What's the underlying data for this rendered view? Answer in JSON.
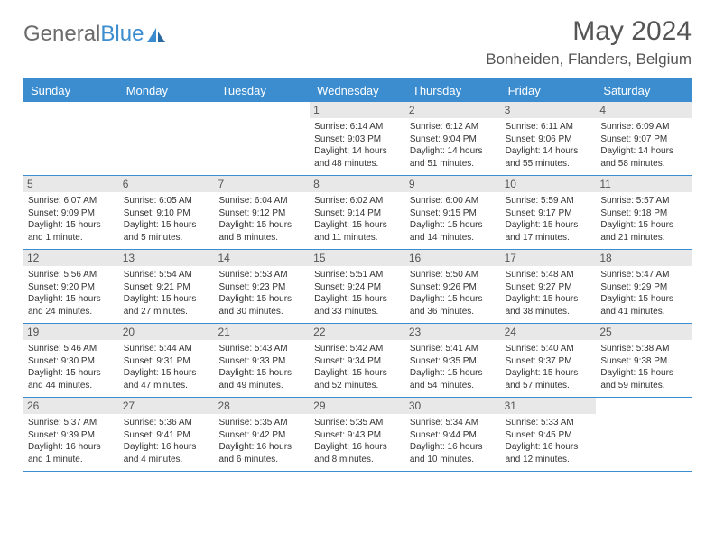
{
  "logo": {
    "text1": "General",
    "text2": "Blue"
  },
  "title": "May 2024",
  "location": "Bonheiden, Flanders, Belgium",
  "colors": {
    "header_bg": "#3b8dd0",
    "daynum_bg": "#e8e8e8",
    "text": "#333333",
    "title_text": "#555555",
    "logo_gray": "#6b6b6b",
    "logo_blue": "#3b8dd0",
    "page_bg": "#ffffff"
  },
  "columns": [
    "Sunday",
    "Monday",
    "Tuesday",
    "Wednesday",
    "Thursday",
    "Friday",
    "Saturday"
  ],
  "weeks": [
    [
      {
        "n": "",
        "sr": "",
        "ss": "",
        "dl": ""
      },
      {
        "n": "",
        "sr": "",
        "ss": "",
        "dl": ""
      },
      {
        "n": "",
        "sr": "",
        "ss": "",
        "dl": ""
      },
      {
        "n": "1",
        "sr": "Sunrise: 6:14 AM",
        "ss": "Sunset: 9:03 PM",
        "dl": "Daylight: 14 hours and 48 minutes."
      },
      {
        "n": "2",
        "sr": "Sunrise: 6:12 AM",
        "ss": "Sunset: 9:04 PM",
        "dl": "Daylight: 14 hours and 51 minutes."
      },
      {
        "n": "3",
        "sr": "Sunrise: 6:11 AM",
        "ss": "Sunset: 9:06 PM",
        "dl": "Daylight: 14 hours and 55 minutes."
      },
      {
        "n": "4",
        "sr": "Sunrise: 6:09 AM",
        "ss": "Sunset: 9:07 PM",
        "dl": "Daylight: 14 hours and 58 minutes."
      }
    ],
    [
      {
        "n": "5",
        "sr": "Sunrise: 6:07 AM",
        "ss": "Sunset: 9:09 PM",
        "dl": "Daylight: 15 hours and 1 minute."
      },
      {
        "n": "6",
        "sr": "Sunrise: 6:05 AM",
        "ss": "Sunset: 9:10 PM",
        "dl": "Daylight: 15 hours and 5 minutes."
      },
      {
        "n": "7",
        "sr": "Sunrise: 6:04 AM",
        "ss": "Sunset: 9:12 PM",
        "dl": "Daylight: 15 hours and 8 minutes."
      },
      {
        "n": "8",
        "sr": "Sunrise: 6:02 AM",
        "ss": "Sunset: 9:14 PM",
        "dl": "Daylight: 15 hours and 11 minutes."
      },
      {
        "n": "9",
        "sr": "Sunrise: 6:00 AM",
        "ss": "Sunset: 9:15 PM",
        "dl": "Daylight: 15 hours and 14 minutes."
      },
      {
        "n": "10",
        "sr": "Sunrise: 5:59 AM",
        "ss": "Sunset: 9:17 PM",
        "dl": "Daylight: 15 hours and 17 minutes."
      },
      {
        "n": "11",
        "sr": "Sunrise: 5:57 AM",
        "ss": "Sunset: 9:18 PM",
        "dl": "Daylight: 15 hours and 21 minutes."
      }
    ],
    [
      {
        "n": "12",
        "sr": "Sunrise: 5:56 AM",
        "ss": "Sunset: 9:20 PM",
        "dl": "Daylight: 15 hours and 24 minutes."
      },
      {
        "n": "13",
        "sr": "Sunrise: 5:54 AM",
        "ss": "Sunset: 9:21 PM",
        "dl": "Daylight: 15 hours and 27 minutes."
      },
      {
        "n": "14",
        "sr": "Sunrise: 5:53 AM",
        "ss": "Sunset: 9:23 PM",
        "dl": "Daylight: 15 hours and 30 minutes."
      },
      {
        "n": "15",
        "sr": "Sunrise: 5:51 AM",
        "ss": "Sunset: 9:24 PM",
        "dl": "Daylight: 15 hours and 33 minutes."
      },
      {
        "n": "16",
        "sr": "Sunrise: 5:50 AM",
        "ss": "Sunset: 9:26 PM",
        "dl": "Daylight: 15 hours and 36 minutes."
      },
      {
        "n": "17",
        "sr": "Sunrise: 5:48 AM",
        "ss": "Sunset: 9:27 PM",
        "dl": "Daylight: 15 hours and 38 minutes."
      },
      {
        "n": "18",
        "sr": "Sunrise: 5:47 AM",
        "ss": "Sunset: 9:29 PM",
        "dl": "Daylight: 15 hours and 41 minutes."
      }
    ],
    [
      {
        "n": "19",
        "sr": "Sunrise: 5:46 AM",
        "ss": "Sunset: 9:30 PM",
        "dl": "Daylight: 15 hours and 44 minutes."
      },
      {
        "n": "20",
        "sr": "Sunrise: 5:44 AM",
        "ss": "Sunset: 9:31 PM",
        "dl": "Daylight: 15 hours and 47 minutes."
      },
      {
        "n": "21",
        "sr": "Sunrise: 5:43 AM",
        "ss": "Sunset: 9:33 PM",
        "dl": "Daylight: 15 hours and 49 minutes."
      },
      {
        "n": "22",
        "sr": "Sunrise: 5:42 AM",
        "ss": "Sunset: 9:34 PM",
        "dl": "Daylight: 15 hours and 52 minutes."
      },
      {
        "n": "23",
        "sr": "Sunrise: 5:41 AM",
        "ss": "Sunset: 9:35 PM",
        "dl": "Daylight: 15 hours and 54 minutes."
      },
      {
        "n": "24",
        "sr": "Sunrise: 5:40 AM",
        "ss": "Sunset: 9:37 PM",
        "dl": "Daylight: 15 hours and 57 minutes."
      },
      {
        "n": "25",
        "sr": "Sunrise: 5:38 AM",
        "ss": "Sunset: 9:38 PM",
        "dl": "Daylight: 15 hours and 59 minutes."
      }
    ],
    [
      {
        "n": "26",
        "sr": "Sunrise: 5:37 AM",
        "ss": "Sunset: 9:39 PM",
        "dl": "Daylight: 16 hours and 1 minute."
      },
      {
        "n": "27",
        "sr": "Sunrise: 5:36 AM",
        "ss": "Sunset: 9:41 PM",
        "dl": "Daylight: 16 hours and 4 minutes."
      },
      {
        "n": "28",
        "sr": "Sunrise: 5:35 AM",
        "ss": "Sunset: 9:42 PM",
        "dl": "Daylight: 16 hours and 6 minutes."
      },
      {
        "n": "29",
        "sr": "Sunrise: 5:35 AM",
        "ss": "Sunset: 9:43 PM",
        "dl": "Daylight: 16 hours and 8 minutes."
      },
      {
        "n": "30",
        "sr": "Sunrise: 5:34 AM",
        "ss": "Sunset: 9:44 PM",
        "dl": "Daylight: 16 hours and 10 minutes."
      },
      {
        "n": "31",
        "sr": "Sunrise: 5:33 AM",
        "ss": "Sunset: 9:45 PM",
        "dl": "Daylight: 16 hours and 12 minutes."
      },
      {
        "n": "",
        "sr": "",
        "ss": "",
        "dl": ""
      }
    ]
  ]
}
